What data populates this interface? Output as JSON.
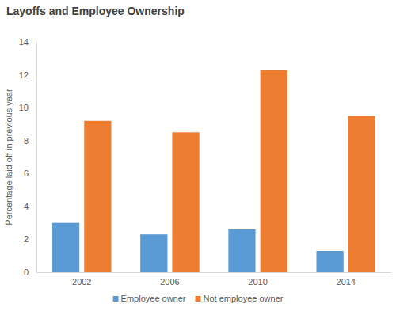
{
  "chart_data": {
    "type": "bar",
    "title": "Layoffs and Employee Ownership",
    "y_label": "Percentage laid off in previous year",
    "categories": [
      "2002",
      "2006",
      "2010",
      "2014"
    ],
    "series": [
      {
        "name": "Employee owner",
        "color": "#5b9bd5",
        "values": [
          3.0,
          2.3,
          2.6,
          1.3
        ]
      },
      {
        "name": "Not employee owner",
        "color": "#ed7d31",
        "values": [
          9.2,
          8.5,
          12.3,
          9.5
        ]
      }
    ],
    "ylim": [
      0,
      14
    ],
    "yticks": [
      0,
      2,
      4,
      6,
      8,
      10,
      12,
      14
    ],
    "grid": false,
    "legend": "bottom"
  }
}
